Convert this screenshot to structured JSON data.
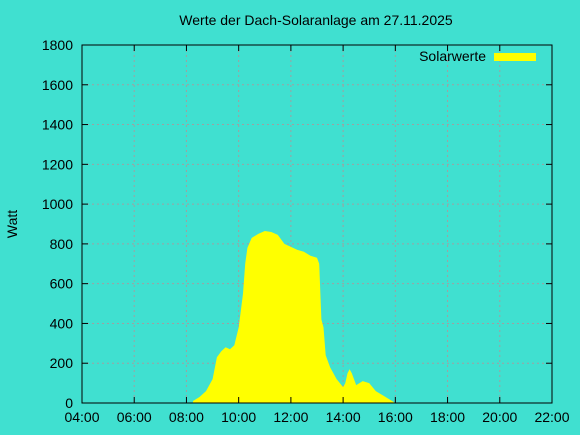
{
  "chart_data": {
    "type": "area",
    "title": "Werte der Dach-Solaranlage am 27.11.2025",
    "xlabel": "",
    "ylabel": "Watt",
    "xlim": [
      "04:00",
      "22:00"
    ],
    "ylim": [
      0,
      1800
    ],
    "xticks": [
      "04:00",
      "06:00",
      "08:00",
      "10:00",
      "12:00",
      "14:00",
      "16:00",
      "18:00",
      "20:00",
      "22:00"
    ],
    "yticks": [
      "0",
      "200",
      "400",
      "600",
      "800",
      "1000",
      "1200",
      "1400",
      "1600",
      "1800"
    ],
    "grid": true,
    "legend_position": "top-right",
    "background_color": "#40E0D0",
    "series": [
      {
        "name": "Solarwerte",
        "color": "#FFFF00",
        "x": [
          "08:15",
          "08:30",
          "08:45",
          "09:00",
          "09:10",
          "09:20",
          "09:30",
          "09:40",
          "09:50",
          "10:00",
          "10:10",
          "10:15",
          "10:20",
          "10:30",
          "10:45",
          "11:00",
          "11:15",
          "11:30",
          "11:45",
          "12:00",
          "12:15",
          "12:30",
          "12:45",
          "13:00",
          "13:05",
          "13:10",
          "13:15",
          "13:20",
          "13:30",
          "13:45",
          "14:00",
          "14:05",
          "14:10",
          "14:15",
          "14:20",
          "14:30",
          "14:45",
          "15:00",
          "15:15",
          "15:30",
          "15:45",
          "16:00"
        ],
        "y": [
          10,
          30,
          60,
          120,
          230,
          260,
          280,
          270,
          290,
          380,
          550,
          700,
          780,
          830,
          850,
          865,
          860,
          845,
          800,
          785,
          770,
          760,
          740,
          730,
          700,
          420,
          380,
          240,
          180,
          120,
          80,
          100,
          150,
          170,
          150,
          90,
          110,
          100,
          60,
          40,
          20,
          0
        ]
      }
    ]
  }
}
